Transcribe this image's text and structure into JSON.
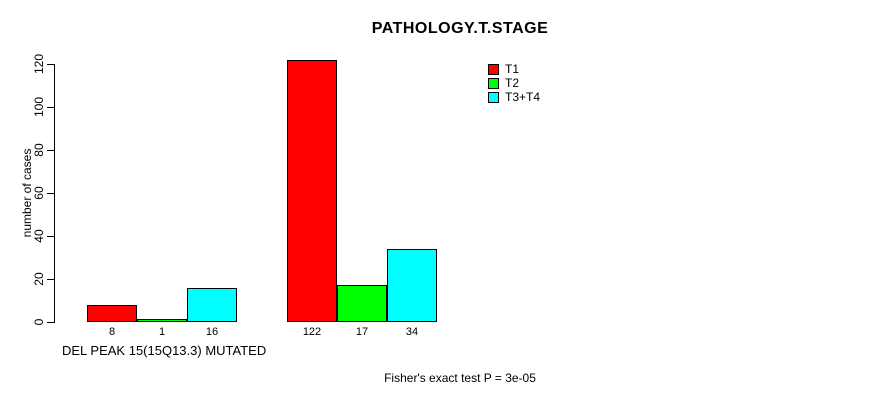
{
  "chart_data": {
    "type": "bar",
    "title": "PATHOLOGY.T.STAGE",
    "ylabel": "number of cases",
    "xlabel": "DEL PEAK 15(15Q13.3) MUTATED",
    "annotation": "Fisher's exact test P = 3e-05",
    "ylim": [
      0,
      120
    ],
    "yticks": [
      0,
      20,
      40,
      60,
      80,
      100,
      120
    ],
    "grid": false,
    "legend_position": "top-right",
    "group_count": 2,
    "series": [
      {
        "name": "T1",
        "color": "#FF0000",
        "values": [
          8,
          122
        ]
      },
      {
        "name": "T2",
        "color": "#00FF00",
        "values": [
          1,
          17
        ]
      },
      {
        "name": "T3+T4",
        "color": "#00FFFF",
        "values": [
          16,
          34
        ]
      }
    ],
    "bar_value_labels": {
      "group1": [
        "8",
        "1",
        "16"
      ],
      "group2": [
        "122",
        "17",
        "34"
      ]
    }
  }
}
